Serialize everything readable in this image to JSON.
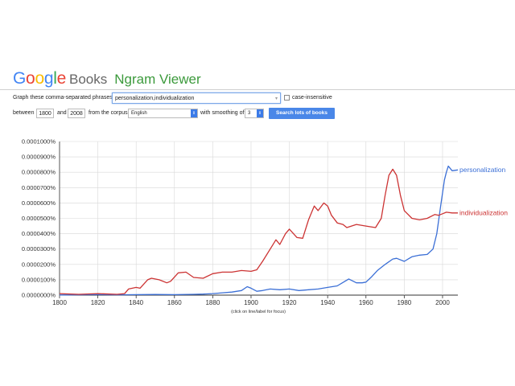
{
  "header": {
    "logo_text": "Google",
    "books_label": "Books",
    "viewer_label": "Ngram Viewer"
  },
  "form": {
    "phrases_label": "Graph these comma-separated phrases:",
    "phrases_value": "personalization,individualization",
    "case_insensitive_label": "case-insensitive",
    "between_label": "between",
    "start_year": "1800",
    "and_label": "and",
    "end_year": "2008",
    "corpus_label": "from the corpus",
    "corpus_value": "English",
    "smoothing_label": "with smoothing of",
    "smoothing_value": "3",
    "search_button": "Search lots of books"
  },
  "footer_note": "(click on line/label for focus)",
  "colors": {
    "personalization": "#3b6fd6",
    "individualization": "#cc3333"
  },
  "chart_data": {
    "type": "line",
    "xlabel": "",
    "ylabel": "",
    "xlim": [
      1800,
      2008
    ],
    "ylim": [
      0,
      1e-06
    ],
    "x_ticks": [
      "1800",
      "1820",
      "1840",
      "1860",
      "1880",
      "1900",
      "1920",
      "1940",
      "1960",
      "1980",
      "2000"
    ],
    "y_ticks": [
      "0.0000000%",
      "0.0000100%",
      "0.0000200%",
      "0.0000300%",
      "0.0000400%",
      "0.0000500%",
      "0.0000600%",
      "0.0000700%",
      "0.0000800%",
      "0.0000900%",
      "0.0001000%"
    ],
    "grid": true,
    "series": [
      {
        "name": "personalization",
        "color": "#3b6fd6",
        "x": [
          1800,
          1810,
          1820,
          1830,
          1840,
          1850,
          1860,
          1870,
          1875,
          1880,
          1885,
          1890,
          1895,
          1898,
          1900,
          1903,
          1906,
          1910,
          1915,
          1920,
          1925,
          1930,
          1935,
          1940,
          1945,
          1949,
          1951,
          1955,
          1958,
          1960,
          1963,
          1966,
          1970,
          1974,
          1976,
          1980,
          1984,
          1988,
          1992,
          1995,
          1997,
          1999,
          2001,
          2002,
          2003,
          2005,
          2008
        ],
        "values": [
          1e-09,
          2e-09,
          4e-09,
          2e-09,
          3e-09,
          4e-09,
          3e-09,
          5e-09,
          7e-09,
          1e-08,
          1.5e-08,
          2e-08,
          3e-08,
          5.5e-08,
          4.5e-08,
          2.5e-08,
          3e-08,
          4e-08,
          3.5e-08,
          4e-08,
          3e-08,
          3.5e-08,
          4e-08,
          5e-08,
          6e-08,
          9e-08,
          1.05e-07,
          8e-08,
          8e-08,
          8.5e-08,
          1.2e-07,
          1.6e-07,
          2e-07,
          2.35e-07,
          2.4e-07,
          2.2e-07,
          2.5e-07,
          2.6e-07,
          2.65e-07,
          3e-07,
          4e-07,
          5.8e-07,
          7.5e-07,
          8e-07,
          8.4e-07,
          8.1e-07,
          8.15e-07
        ]
      },
      {
        "name": "individualization",
        "color": "#cc3333",
        "x": [
          1800,
          1810,
          1820,
          1830,
          1834,
          1836,
          1840,
          1842,
          1846,
          1848,
          1852,
          1856,
          1858,
          1862,
          1866,
          1870,
          1875,
          1880,
          1885,
          1890,
          1895,
          1900,
          1903,
          1906,
          1910,
          1913,
          1915,
          1918,
          1920,
          1924,
          1927,
          1930,
          1933,
          1935,
          1938,
          1940,
          1942,
          1945,
          1948,
          1950,
          1955,
          1960,
          1965,
          1968,
          1970,
          1972,
          1974,
          1976,
          1978,
          1980,
          1984,
          1988,
          1992,
          1996,
          1998,
          2000,
          2002,
          2005,
          2008
        ],
        "values": [
          1e-08,
          5e-09,
          1e-08,
          5e-09,
          1e-08,
          4e-08,
          5e-08,
          4.5e-08,
          1e-07,
          1.1e-07,
          1e-07,
          8e-08,
          9e-08,
          1.45e-07,
          1.5e-07,
          1.15e-07,
          1.1e-07,
          1.4e-07,
          1.5e-07,
          1.5e-07,
          1.6e-07,
          1.55e-07,
          1.65e-07,
          2.2e-07,
          3e-07,
          3.6e-07,
          3.3e-07,
          4e-07,
          4.3e-07,
          3.75e-07,
          3.7e-07,
          4.9e-07,
          5.8e-07,
          5.5e-07,
          6e-07,
          5.8e-07,
          5.2e-07,
          4.7e-07,
          4.6e-07,
          4.4e-07,
          4.6e-07,
          4.5e-07,
          4.4e-07,
          5e-07,
          6.5e-07,
          7.8e-07,
          8.2e-07,
          7.8e-07,
          6.5e-07,
          5.5e-07,
          5e-07,
          4.9e-07,
          5e-07,
          5.25e-07,
          5.2e-07,
          5.3e-07,
          5.4e-07,
          5.35e-07,
          5.35e-07
        ]
      }
    ]
  }
}
